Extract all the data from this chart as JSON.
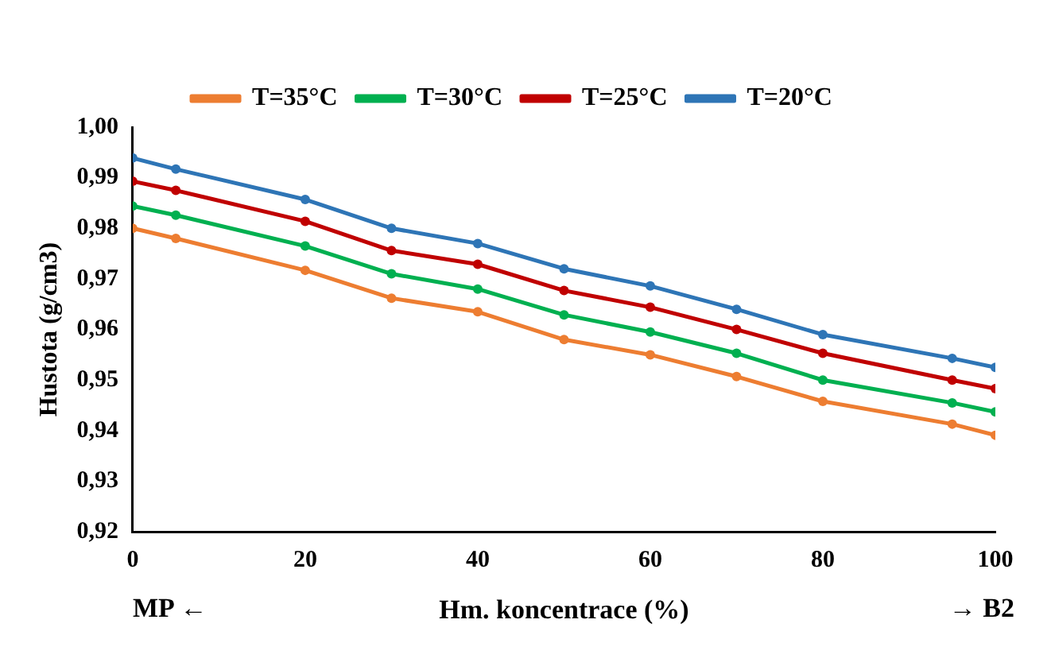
{
  "chart_data": {
    "type": "line",
    "xlabel": "Hm. koncentrace (%)",
    "ylabel": "Hustota (g/cm3)",
    "x": [
      0,
      5,
      20,
      30,
      40,
      50,
      60,
      70,
      80,
      95,
      100
    ],
    "series": [
      {
        "name": "T=35°C",
        "color": "#ed7d31",
        "values": [
          0.98,
          0.978,
          0.9717,
          0.9662,
          0.9635,
          0.958,
          0.955,
          0.9507,
          0.9458,
          0.9413,
          0.9391
        ]
      },
      {
        "name": "T=30°C",
        "color": "#00b050",
        "values": [
          0.9844,
          0.9826,
          0.9765,
          0.971,
          0.968,
          0.9629,
          0.9595,
          0.9553,
          0.95,
          0.9455,
          0.9437
        ]
      },
      {
        "name": "T=25°C",
        "color": "#c00000",
        "values": [
          0.9893,
          0.9875,
          0.9814,
          0.9756,
          0.9729,
          0.9677,
          0.9644,
          0.96,
          0.9553,
          0.95,
          0.9483
        ]
      },
      {
        "name": "T=20°C",
        "color": "#2e75b6",
        "values": [
          0.9939,
          0.9917,
          0.9857,
          0.98,
          0.977,
          0.972,
          0.9686,
          0.964,
          0.959,
          0.9543,
          0.9525
        ]
      }
    ],
    "xlim": [
      0,
      100
    ],
    "xticks": [
      0,
      20,
      40,
      60,
      80,
      100
    ],
    "ylim": [
      0.92,
      1.0
    ],
    "yticks": [
      {
        "value": 0.92,
        "label": "0,92"
      },
      {
        "value": 0.93,
        "label": "0,93"
      },
      {
        "value": 0.94,
        "label": "0,94"
      },
      {
        "value": 0.95,
        "label": "0,95"
      },
      {
        "value": 0.96,
        "label": "0,96"
      },
      {
        "value": 0.97,
        "label": "0,97"
      },
      {
        "value": 0.98,
        "label": "0,98"
      },
      {
        "value": 0.99,
        "label": "0,99"
      },
      {
        "value": 1.0,
        "label": "1,00"
      }
    ],
    "annotations": [
      "MP ←",
      "→ B2"
    ],
    "grid": false,
    "legend": "top",
    "marker": "circle",
    "line_style": "solid"
  }
}
